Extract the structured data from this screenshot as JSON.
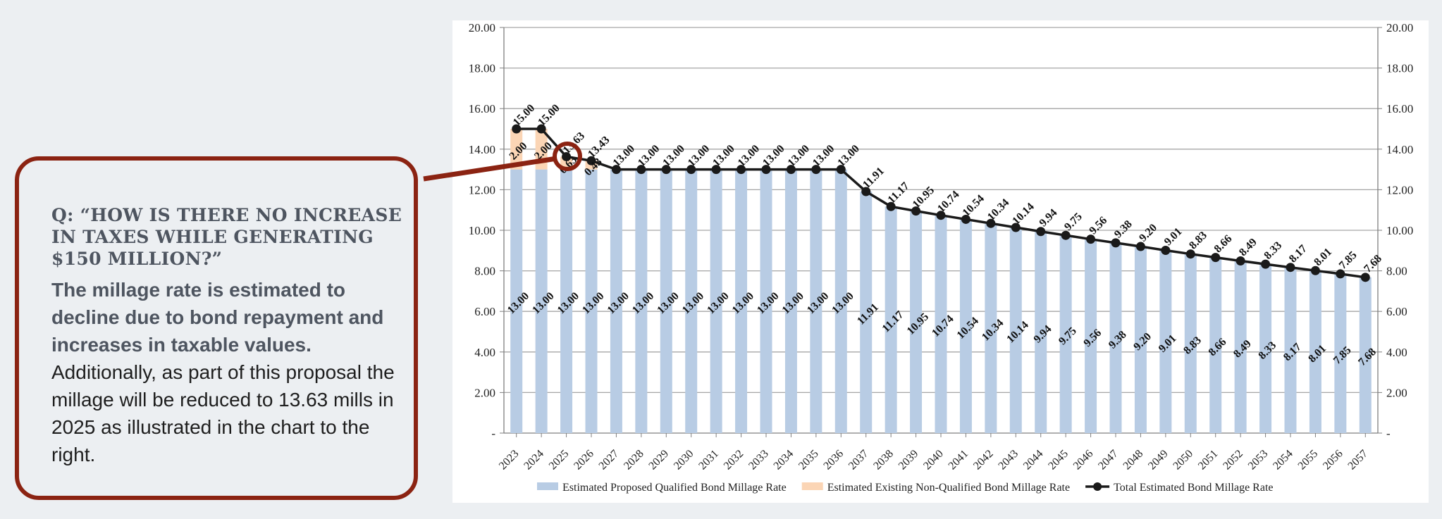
{
  "callout": {
    "question": "Q: “HOW IS THERE NO INCREASE IN TAXES WHILE GENERATING $150 MILLION?”",
    "answer_bold": "The millage rate is estimated to decline due to bond repayment and increases in taxable values.",
    "answer_regular": "Additionally, as part of this proposal the millage will be reduced to 13.63 mills in 2025 as illustrated in the chart to the right."
  },
  "colors": {
    "qualified": "#b8cce4",
    "non_qualified": "#fbd5b5",
    "total": "#1a1a1a",
    "accent": "#8b2312"
  },
  "chart_data": {
    "type": "bar",
    "stacked": true,
    "categories": [
      "2023",
      "2024",
      "2025",
      "2026",
      "2027",
      "2028",
      "2029",
      "2030",
      "2031",
      "2032",
      "2033",
      "2034",
      "2035",
      "2036",
      "2037",
      "2038",
      "2039",
      "2040",
      "2041",
      "2042",
      "2043",
      "2044",
      "2045",
      "2046",
      "2047",
      "2048",
      "2049",
      "2050",
      "2051",
      "2052",
      "2053",
      "2054",
      "2055",
      "2056",
      "2057"
    ],
    "series": [
      {
        "name": "Estimated Proposed Qualified Bond Millage Rate",
        "type": "bar",
        "values": [
          13.0,
          13.0,
          13.0,
          13.0,
          13.0,
          13.0,
          13.0,
          13.0,
          13.0,
          13.0,
          13.0,
          13.0,
          13.0,
          13.0,
          11.91,
          11.17,
          10.95,
          10.74,
          10.54,
          10.34,
          10.14,
          9.94,
          9.75,
          9.56,
          9.38,
          9.2,
          9.01,
          8.83,
          8.66,
          8.49,
          8.33,
          8.17,
          8.01,
          7.85,
          7.68
        ]
      },
      {
        "name": "Estimated Existing Non-Qualified Bond Millage Rate",
        "type": "bar",
        "values": [
          2.0,
          2.0,
          0.63,
          0.43,
          0,
          0,
          0,
          0,
          0,
          0,
          0,
          0,
          0,
          0,
          0,
          0,
          0,
          0,
          0,
          0,
          0,
          0,
          0,
          0,
          0,
          0,
          0,
          0,
          0,
          0,
          0,
          0,
          0,
          0,
          0
        ]
      },
      {
        "name": "Total Estimated Bond Millage Rate",
        "type": "line",
        "values": [
          15.0,
          15.0,
          13.63,
          13.43,
          13.0,
          13.0,
          13.0,
          13.0,
          13.0,
          13.0,
          13.0,
          13.0,
          13.0,
          13.0,
          11.91,
          11.17,
          10.95,
          10.74,
          10.54,
          10.34,
          10.14,
          9.94,
          9.75,
          9.56,
          9.38,
          9.2,
          9.01,
          8.83,
          8.66,
          8.49,
          8.33,
          8.17,
          8.01,
          7.85,
          7.68
        ]
      }
    ],
    "ylim": [
      0,
      20
    ],
    "y_ticks": [
      "-",
      "2.00",
      "4.00",
      "6.00",
      "8.00",
      "10.00",
      "12.00",
      "14.00",
      "16.00",
      "18.00",
      "20.00"
    ],
    "secondary_y_axis": true,
    "grid": true,
    "legend": "bottom",
    "highlight": "2025"
  }
}
